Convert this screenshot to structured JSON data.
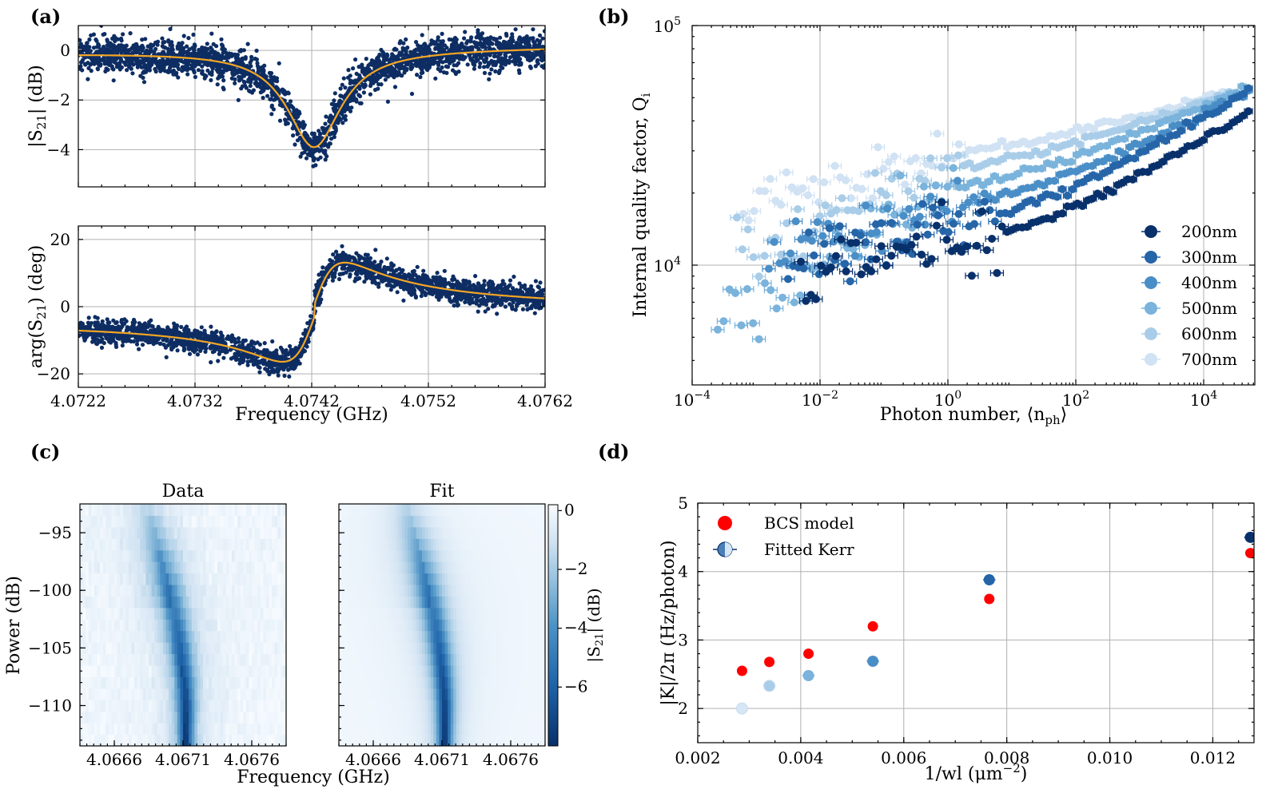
{
  "chart_data": [
    {
      "panel": "(a) top",
      "type": "scatter",
      "label": "(a)",
      "xlabel": "",
      "ylabel": "|S21| (dB)",
      "ylabel_main": "|S",
      "ylabel_sub": "21",
      "ylabel_end": "| (dB)",
      "xlim": [
        4.0722,
        4.0762
      ],
      "ylim": [
        -5.5,
        1.0
      ],
      "yticks": [
        0,
        -2,
        -4
      ],
      "ytick_labels": [
        "0",
        "−2",
        "−4"
      ],
      "xticks": [
        4.0722,
        4.0732,
        4.0742,
        4.0752,
        4.0762
      ],
      "series": [
        {
          "name": "data",
          "kind": "noisy-resonance",
          "color": "#0d2d63",
          "center": 4.07422,
          "depth_db": -3.9,
          "width_ghz": 0.00028,
          "noise_db": 0.35
        },
        {
          "name": "fit",
          "kind": "lorentzian-fit",
          "color": "#f5a623",
          "center": 4.07422,
          "depth_db": -3.9,
          "width_ghz": 0.00028
        }
      ]
    },
    {
      "panel": "(a) bottom",
      "type": "scatter",
      "xlabel": "Frequency (GHz)",
      "ylabel": "arg(S21) (deg)",
      "ylabel_main": "arg(S",
      "ylabel_sub": "21",
      "ylabel_end": ") (deg)",
      "xlim": [
        4.0722,
        4.0762
      ],
      "ylim": [
        -24,
        24
      ],
      "yticks": [
        20,
        0,
        -20
      ],
      "ytick_labels": [
        "20",
        "0",
        "−20"
      ],
      "xticks": [
        4.0722,
        4.0732,
        4.0742,
        4.0752,
        4.0762
      ],
      "xtick_labels": [
        "4.0722",
        "4.0732",
        "4.0742",
        "4.0752",
        "4.0762"
      ],
      "series": [
        {
          "name": "data",
          "kind": "noisy-phase",
          "color": "#0d2d63",
          "center": 4.07422,
          "amp_deg": 13,
          "noise_deg": 1.8
        },
        {
          "name": "fit",
          "kind": "phase-fit",
          "color": "#f5a623",
          "center": 4.07422,
          "amp_deg": 13
        }
      ]
    },
    {
      "panel": "(b)",
      "type": "scatter",
      "label": "(b)",
      "xlabel": "Photon number, ⟨n_ph⟩",
      "xlabel_main": "Photon number, ⟨n",
      "xlabel_sub": "ph",
      "xlabel_end": "⟩",
      "ylabel": "Internal quality factor, Q_i",
      "ylabel_main": "Internal quality factor, Q",
      "ylabel_sub": "i",
      "xscale": "log",
      "yscale": "log",
      "xlim_log10": [
        -4,
        4.8
      ],
      "ylim_log10": [
        3.5,
        5
      ],
      "xtick_exponents": [
        "−4",
        "−2",
        "0",
        "2",
        "4"
      ],
      "ytick_exponents": [
        "4",
        "5"
      ],
      "legend_position": "lower-right",
      "series": [
        {
          "name": "200nm",
          "color": "#08306b",
          "x_log10_range": [
            -2.3,
            4.7
          ],
          "q_start": 9000,
          "q_low": 13000,
          "q_end": 44000
        },
        {
          "name": "300nm",
          "color": "#2565a8",
          "x_log10_range": [
            -2.5,
            4.7
          ],
          "q_start": 10000,
          "q_low": 15500,
          "q_end": 54000
        },
        {
          "name": "400nm",
          "color": "#4a8ec7",
          "x_log10_range": [
            -2.8,
            4.7
          ],
          "q_start": 11000,
          "q_low": 18000,
          "q_end": 54000
        },
        {
          "name": "500nm",
          "color": "#7ab3db",
          "x_log10_range": [
            -3.6,
            4.6
          ],
          "q_start": 5500,
          "q_low": 20000,
          "q_end": 54000
        },
        {
          "name": "600nm",
          "color": "#a9cde8",
          "x_log10_range": [
            -3.3,
            4.4
          ],
          "q_start": 11000,
          "q_low": 25000,
          "q_end": 52000
        },
        {
          "name": "700nm",
          "color": "#d0e2f3",
          "x_log10_range": [
            -3.2,
            4.3
          ],
          "q_start": 17000,
          "q_low": 29000,
          "q_end": 52000
        }
      ]
    },
    {
      "panel": "(c)",
      "type": "heatmap",
      "label": "(c)",
      "subplot_titles": [
        "Data",
        "Fit"
      ],
      "xlabel": "Frequency (GHz)",
      "ylabel": "Power (dB)",
      "xlim": [
        4.06635,
        4.06785
      ],
      "ylim": [
        -113.5,
        -92.5
      ],
      "yticks": [
        -95,
        -100,
        -105,
        -110
      ],
      "ytick_labels": [
        "−95",
        "−100",
        "−105",
        "−110"
      ],
      "xticks": [
        4.0666,
        4.0671,
        4.0676
      ],
      "xtick_labels": [
        "4.0666",
        "4.0671",
        "4.0676"
      ],
      "colorbar_label": "|S21| (dB)",
      "colorbar_main": "|S",
      "colorbar_sub": "21",
      "colorbar_end": "| (dB)",
      "colorbar_range": [
        -8,
        0.2
      ],
      "colorbar_ticks": [
        0,
        -2,
        -4,
        -6
      ],
      "colorbar_tick_labels": [
        "0",
        "−2",
        "−4",
        "−6"
      ],
      "resonance_high_power": 4.06685,
      "resonance_low_power": 4.06712,
      "min_depth_db": -7.8
    },
    {
      "panel": "(d)",
      "type": "scatter",
      "label": "(d)",
      "xlabel": "1/wl (μm⁻²)",
      "xlabel_main": "1/wl (μm",
      "xlabel_sup": "−2",
      "xlabel_end": ")",
      "ylabel": "|K|/2π (Hz/photon)",
      "xlim": [
        0.002,
        0.0128
      ],
      "ylim": [
        1.5,
        5
      ],
      "xticks": [
        0.002,
        0.004,
        0.006,
        0.008,
        0.01,
        0.012
      ],
      "xtick_labels": [
        "0.002",
        "0.004",
        "0.006",
        "0.008",
        "0.010",
        "0.012"
      ],
      "yticks": [
        2,
        3,
        4,
        5
      ],
      "ytick_labels": [
        "2",
        "3",
        "4",
        "5"
      ],
      "legend_position": "top-left",
      "series": [
        {
          "name": "BCS model",
          "color": "#ff0000",
          "x": [
            0.00286,
            0.00339,
            0.00415,
            0.0054,
            0.00766,
            0.01273
          ],
          "y": [
            2.55,
            2.68,
            2.8,
            3.2,
            3.6,
            4.27
          ]
        },
        {
          "name": "Fitted Kerr",
          "x": [
            0.00286,
            0.00339,
            0.00415,
            0.0054,
            0.00766,
            0.01273
          ],
          "y": [
            2.0,
            2.33,
            2.48,
            2.69,
            3.88,
            4.5
          ],
          "xerr": 0.00012,
          "colors": [
            "#d6e6f4",
            "#a9cde8",
            "#7ab3db",
            "#4a8ec7",
            "#2565a8",
            "#08306b"
          ]
        }
      ]
    }
  ]
}
